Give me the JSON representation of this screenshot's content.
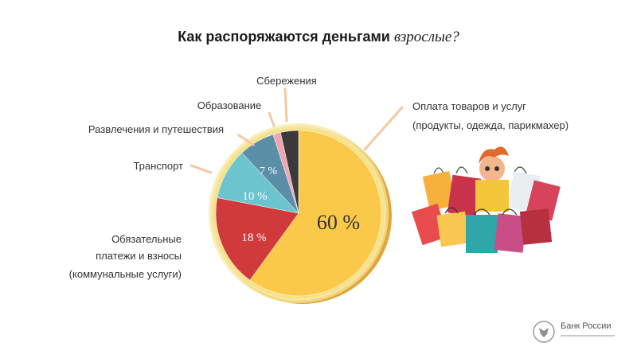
{
  "title": {
    "main": "Как распоряжаются деньгами ",
    "emphasis": "взрослые?"
  },
  "chart_data": {
    "type": "pie",
    "title": "Как распоряжаются деньгами взрослые?",
    "slices": [
      {
        "label": "Оплата товаров и услуг (продукты, одежда, парикмахер)",
        "value": 60,
        "display": "60 %",
        "color": "#FBC94A"
      },
      {
        "label": "Обязательные платежи и взносы (коммунальные услуги)",
        "value": 18,
        "display": "18 %",
        "color": "#D13A3A"
      },
      {
        "label": "Транспорт",
        "value": 10,
        "display": "10 %",
        "color": "#6CC4CE"
      },
      {
        "label": "Развлечения и путешествия",
        "value": 7,
        "display": "7 %",
        "color": "#5B8FA8"
      },
      {
        "label": "Образование",
        "value": 1.5,
        "display": "",
        "color": "#EFA6B2"
      },
      {
        "label": "Сбережения",
        "value": 3.5,
        "display": "",
        "color": "#3A3A3A"
      }
    ]
  },
  "labels": {
    "savings": "Сбережения",
    "education": "Образование",
    "entertainment": "Развлечения и путешествия",
    "transport": "Транспорт",
    "payments_1": "Обязательные",
    "payments_2": "платежи и взносы",
    "payments_3": "(коммунальные услуги)",
    "goods_1": "Оплата товаров и услуг",
    "goods_2": "(продукты, одежда, парикмахер)"
  },
  "logo": {
    "name": "Банк России"
  }
}
